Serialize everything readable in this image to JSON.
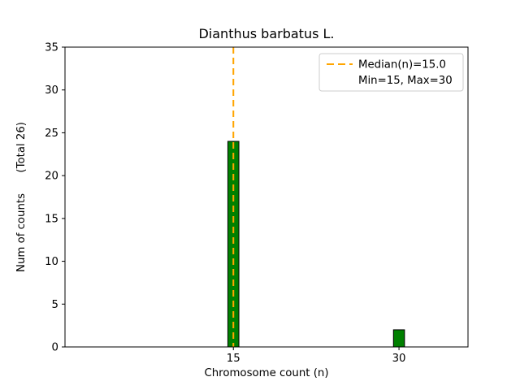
{
  "chart_data": {
    "type": "bar",
    "title": "Dianthus barbatus L.",
    "xlabel": "Chromosome count (n)",
    "ylabel": "Num of counts      (Total 26)",
    "total_counts": 26,
    "categories": [
      15,
      30
    ],
    "values": [
      24,
      2
    ],
    "bar_width": 1,
    "bar_color": "#008000",
    "bar_edge_color": "#000000",
    "xlim": [
      -0.25,
      36.25
    ],
    "ylim": [
      0,
      35
    ],
    "xticks": [
      15,
      30
    ],
    "yticks": [
      0,
      5,
      10,
      15,
      20,
      25,
      30,
      35
    ],
    "grid": false,
    "median_line": {
      "x": 15,
      "color": "#FFA500",
      "style": "dashed",
      "label": "Median(n)=15.0"
    },
    "legend": {
      "position": "upper-right",
      "entries": [
        {
          "label": "Median(n)=15.0",
          "sample": "dashed-line",
          "color": "#FFA500"
        },
        {
          "label": "Min=15, Max=30",
          "sample": "none",
          "color": null
        }
      ]
    },
    "stats": {
      "median": 15.0,
      "min": 15,
      "max": 30
    }
  }
}
